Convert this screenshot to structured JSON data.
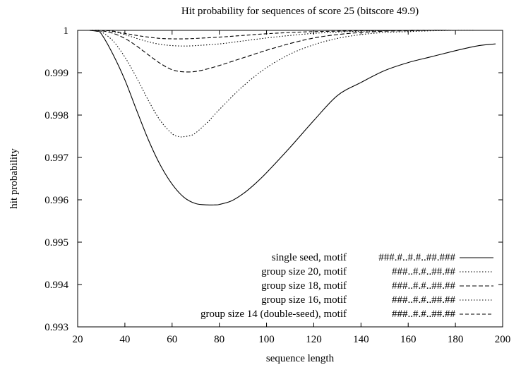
{
  "chart_data": {
    "type": "line",
    "title": "Hit probability for sequences of score 25 (bitscore 49.9)",
    "xlabel": "sequence length",
    "ylabel": "hit probability",
    "xlim": [
      20,
      200
    ],
    "ylim": [
      0.993,
      1.0
    ],
    "x_ticks": [
      20,
      40,
      60,
      80,
      100,
      120,
      140,
      160,
      180,
      200
    ],
    "y_ticks": [
      0.993,
      0.994,
      0.995,
      0.996,
      0.997,
      0.998,
      0.999,
      1.0
    ],
    "x_tick_labels": [
      "20",
      "40",
      "60",
      "80",
      "100",
      "120",
      "140",
      "160",
      "180",
      "200"
    ],
    "y_tick_labels": [
      "0.993",
      "0.994",
      "0.995",
      "0.996",
      "0.997",
      "0.998",
      "0.999",
      "1"
    ],
    "grid": false,
    "legend_position": "bottom-right",
    "series": [
      {
        "name": "single seed, motif",
        "motif": "###.#..#.#..##.###",
        "dash": "",
        "x": [
          25,
          28,
          30,
          35,
          40,
          45,
          50,
          55,
          60,
          65,
          70,
          75,
          78,
          80,
          85,
          90,
          95,
          100,
          110,
          120,
          130,
          140,
          150,
          160,
          170,
          180,
          190,
          197
        ],
        "y": [
          1.0,
          0.99998,
          0.99992,
          0.99943,
          0.99883,
          0.99811,
          0.99741,
          0.99682,
          0.99637,
          0.99606,
          0.99591,
          0.99588,
          0.99588,
          0.99589,
          0.99597,
          0.99614,
          0.99637,
          0.99664,
          0.99724,
          0.99787,
          0.99846,
          0.99877,
          0.99905,
          0.99924,
          0.99938,
          0.99952,
          0.99964,
          0.99968
        ]
      },
      {
        "name": "group size 20, motif",
        "motif": "###..#.#..##.##",
        "dash": "1.5,2.5",
        "x": [
          25,
          28,
          30,
          35,
          40,
          45,
          50,
          55,
          60,
          63,
          65,
          68,
          70,
          75,
          80,
          90,
          100,
          110,
          120,
          130,
          140,
          150,
          160,
          170,
          180,
          190,
          197
        ],
        "y": [
          1.0,
          0.99999,
          0.99997,
          0.99975,
          0.99937,
          0.99888,
          0.99834,
          0.99787,
          0.99756,
          0.99749,
          0.99749,
          0.99752,
          0.99758,
          0.99783,
          0.99813,
          0.99868,
          0.99912,
          0.99944,
          0.99966,
          0.99981,
          0.9999,
          0.99995,
          0.99997,
          0.99999,
          1.0,
          1.0,
          1.0
        ]
      },
      {
        "name": "group size 18, motif",
        "motif": "###..#.#..##.##",
        "dash": "6,3",
        "x": [
          25,
          30,
          35,
          40,
          45,
          50,
          55,
          60,
          65,
          70,
          75,
          80,
          90,
          100,
          110,
          120,
          130,
          140,
          150,
          160,
          170,
          180,
          190,
          197
        ],
        "y": [
          1.0,
          0.99999,
          0.99993,
          0.99981,
          0.99963,
          0.99942,
          0.99922,
          0.99907,
          0.99902,
          0.99903,
          0.99909,
          0.99917,
          0.99935,
          0.99953,
          0.99969,
          0.99982,
          0.9999,
          0.99995,
          0.99998,
          0.99999,
          1.0,
          1.0,
          1.0,
          1.0
        ]
      },
      {
        "name": "group size 16, motif",
        "motif": "###..#.#..##.##",
        "dash": "1.5,2.5",
        "x": [
          25,
          30,
          35,
          40,
          45,
          50,
          55,
          60,
          65,
          70,
          80,
          90,
          100,
          110,
          120,
          130,
          140,
          160,
          180,
          197
        ],
        "y": [
          1.0,
          1.0,
          0.99997,
          0.9999,
          0.99981,
          0.99973,
          0.99967,
          0.99964,
          0.99963,
          0.99964,
          0.99968,
          0.99975,
          0.99982,
          0.99988,
          0.99993,
          0.99996,
          0.99998,
          1.0,
          1.0,
          1.0
        ]
      },
      {
        "name": "group size 14 (double-seed), motif",
        "motif": "###..#.#..##.##",
        "dash": "5,3",
        "x": [
          25,
          30,
          35,
          40,
          45,
          50,
          55,
          60,
          65,
          70,
          80,
          90,
          100,
          110,
          120,
          130,
          140,
          160,
          180,
          197
        ],
        "y": [
          1.0,
          1.0,
          0.99998,
          0.99993,
          0.99988,
          0.99984,
          0.99981,
          0.9998,
          0.9998,
          0.99981,
          0.99984,
          0.99988,
          0.99992,
          0.99995,
          0.99997,
          0.99998,
          0.99999,
          1.0,
          1.0,
          1.0
        ]
      }
    ]
  }
}
